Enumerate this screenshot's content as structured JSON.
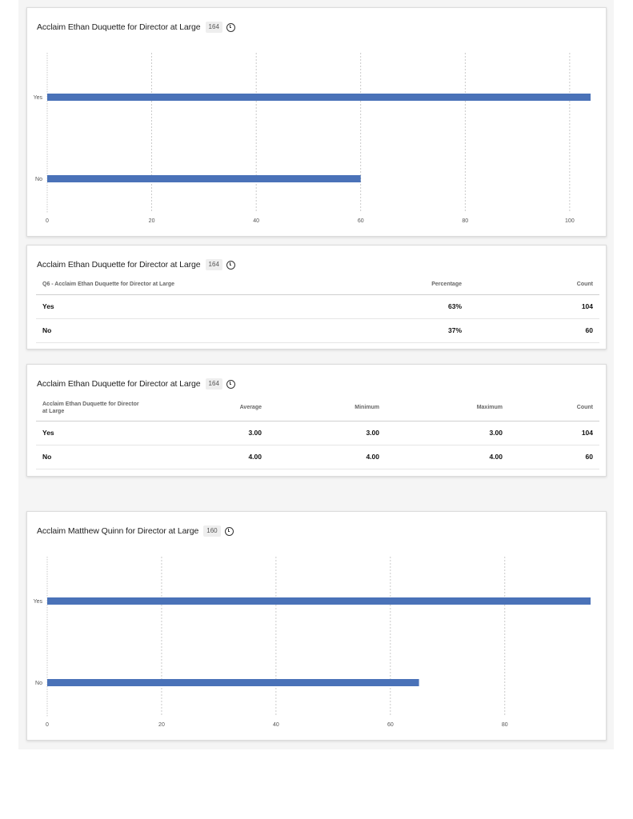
{
  "chart_data": [
    {
      "type": "bar",
      "orientation": "horizontal",
      "title": "Acclaim Ethan Duquette for Director at Large",
      "badge": "164",
      "categories": [
        "Yes",
        "No"
      ],
      "values": [
        104,
        60
      ],
      "x_ticks": [
        "0",
        "20",
        "40",
        "60",
        "80",
        "100"
      ],
      "xlim": [
        0,
        104
      ],
      "grid": true,
      "color": "#4a72b8"
    },
    {
      "type": "table",
      "title": "Acclaim Ethan Duquette for Director at Large",
      "badge": "164",
      "columns": [
        "Q6 - Acclaim Ethan Duquette for Director at Large",
        "Percentage",
        "Count"
      ],
      "rows": [
        [
          "Yes",
          "63%",
          "104"
        ],
        [
          "No",
          "37%",
          "60"
        ]
      ]
    },
    {
      "type": "table",
      "title": "Acclaim Ethan Duquette for Director at Large",
      "badge": "164",
      "columns": [
        "Acclaim Ethan Duquette for Director at Large",
        "Average",
        "Minimum",
        "Maximum",
        "Count"
      ],
      "rows": [
        [
          "Yes",
          "3.00",
          "3.00",
          "3.00",
          "104"
        ],
        [
          "No",
          "4.00",
          "4.00",
          "4.00",
          "60"
        ]
      ]
    },
    {
      "type": "bar",
      "orientation": "horizontal",
      "title": "Acclaim Matthew Quinn for Director at Large",
      "badge": "160",
      "categories": [
        "Yes",
        "No"
      ],
      "values": [
        95,
        65
      ],
      "x_ticks": [
        "0",
        "20",
        "40",
        "60",
        "80"
      ],
      "xlim": [
        0,
        95
      ],
      "grid": true,
      "color": "#4a72b8"
    }
  ]
}
